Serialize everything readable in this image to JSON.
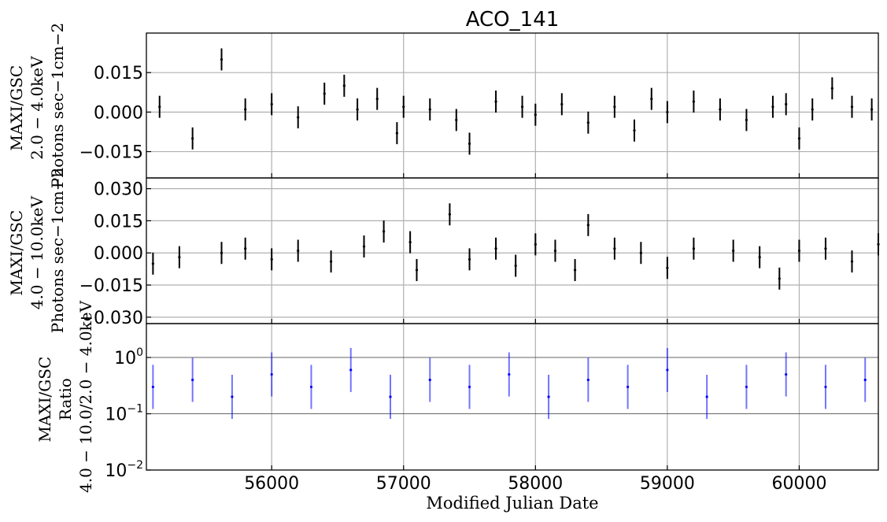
{
  "chart_data": [
    {
      "type": "scatter",
      "panel": "top",
      "title": "ACO_141",
      "ylabel_lines": [
        "MAXI/GSC",
        "2.0 − 4.0keV",
        "Photons sec−1cm−2"
      ],
      "yticks": [
        "−0.015",
        "0.000",
        "0.015"
      ],
      "ytick_values": [
        -0.015,
        0.0,
        0.015
      ],
      "ylim": [
        -0.025,
        0.03
      ],
      "xlim": [
        55050,
        60600
      ],
      "grid": true,
      "error_bars": true,
      "color": "#000000",
      "series": [
        {
          "x": [
            55150,
            55400,
            55620,
            55800,
            56000,
            56200,
            56400,
            56550,
            56650,
            56800,
            56950,
            57000,
            57200,
            57400,
            57500,
            57700,
            57900,
            58000,
            58200,
            58400,
            58600,
            58750,
            58880,
            59000,
            59200,
            59400,
            59600,
            59800,
            59900,
            60000,
            60100,
            60250,
            60400,
            60550
          ],
          "y": [
            0.002,
            -0.01,
            0.02,
            0.001,
            0.003,
            -0.002,
            0.007,
            0.01,
            0.001,
            0.005,
            -0.008,
            0.002,
            0.001,
            -0.003,
            -0.012,
            0.004,
            0.002,
            -0.001,
            0.003,
            -0.004,
            0.002,
            -0.007,
            0.005,
            0.0,
            0.004,
            0.001,
            -0.003,
            0.002,
            0.003,
            -0.01,
            0.001,
            0.009,
            0.002,
            0.001
          ]
        }
      ]
    },
    {
      "type": "scatter",
      "panel": "middle",
      "ylabel_lines": [
        "MAXI/GSC",
        "4.0 − 10.0keV",
        "Photons sec−1cm−2"
      ],
      "yticks": [
        "−0.030",
        "−0.015",
        "0.000",
        "0.015",
        "0.030"
      ],
      "ytick_values": [
        -0.03,
        -0.015,
        0.0,
        0.015,
        0.03
      ],
      "ylim": [
        -0.033,
        0.035
      ],
      "xlim": [
        55050,
        60600
      ],
      "grid": true,
      "error_bars": true,
      "color": "#000000",
      "series": [
        {
          "x": [
            55100,
            55300,
            55620,
            55800,
            56000,
            56200,
            56450,
            56700,
            56850,
            57050,
            57100,
            57350,
            57500,
            57700,
            57850,
            58000,
            58150,
            58300,
            58400,
            58600,
            58800,
            59000,
            59200,
            59500,
            59700,
            59850,
            60000,
            60200,
            60400,
            60600
          ],
          "y": [
            -0.005,
            -0.002,
            0.0,
            0.002,
            -0.003,
            0.001,
            -0.004,
            0.003,
            0.01,
            0.005,
            -0.008,
            0.018,
            -0.003,
            0.002,
            -0.006,
            0.004,
            0.001,
            -0.008,
            0.013,
            0.002,
            0.0,
            -0.007,
            0.002,
            0.001,
            -0.002,
            -0.012,
            0.001,
            0.002,
            -0.004,
            0.004
          ]
        }
      ]
    },
    {
      "type": "scatter",
      "panel": "bottom",
      "ylabel_lines": [
        "MAXI/GSC",
        "Ratio",
        "4.0 − 10.0/2.0 − 4.0keV"
      ],
      "yscale": "log",
      "yticks": [
        "10−2",
        "10−1",
        "100"
      ],
      "ytick_values": [
        0.01,
        0.1,
        1
      ],
      "ylim": [
        0.01,
        4
      ],
      "xlim": [
        55050,
        60600
      ],
      "xlabel": "Modified Julian Date",
      "xticks": [
        "56000",
        "57000",
        "58000",
        "59000",
        "60000"
      ],
      "xtick_values": [
        56000,
        57000,
        58000,
        59000,
        60000
      ],
      "grid": true,
      "error_bars": true,
      "color": "#0000ff",
      "series": [
        {
          "x": [
            55100,
            55400,
            55700,
            56000,
            56300,
            56600,
            56900,
            57200,
            57500,
            57800,
            58100,
            58400,
            58700,
            59000,
            59300,
            59600,
            59900,
            60200,
            60500
          ],
          "y": [
            0.3,
            0.4,
            0.2,
            0.5,
            0.3,
            0.6,
            0.2,
            0.4,
            0.3,
            0.5,
            0.2,
            0.4,
            0.3,
            0.6,
            0.2,
            0.3,
            0.5,
            0.3,
            0.4
          ]
        }
      ]
    }
  ]
}
